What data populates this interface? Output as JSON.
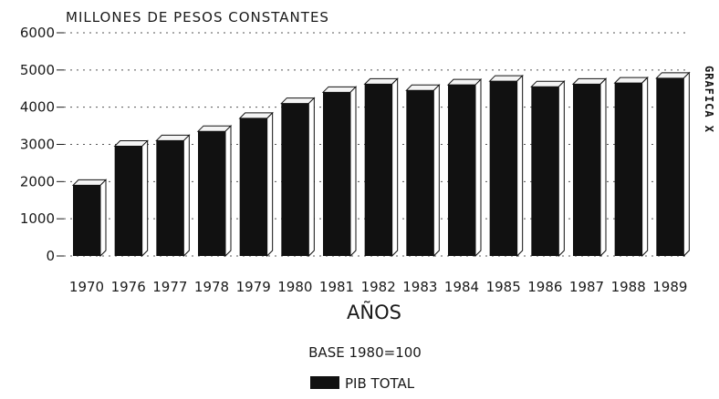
{
  "chart_data": {
    "type": "bar",
    "title": "MILLONES DE PESOS CONSTANTES",
    "side_title": "GRAFICA X",
    "xlabel": "AÑOS",
    "subtitle": "BASE 1980=100",
    "categories": [
      "1970",
      "1976",
      "1977",
      "1978",
      "1979",
      "1980",
      "1981",
      "1982",
      "1983",
      "1984",
      "1985",
      "1986",
      "1987",
      "1988",
      "1989"
    ],
    "series": [
      {
        "name": "PIB TOTAL",
        "values": [
          1900,
          2950,
          3100,
          3350,
          3700,
          4100,
          4400,
          4620,
          4450,
          4600,
          4700,
          4550,
          4620,
          4650,
          4780
        ]
      }
    ],
    "ylim": [
      0,
      6000
    ],
    "yticks": [
      0,
      1000,
      2000,
      3000,
      4000,
      5000,
      6000
    ],
    "ytick_labels": [
      "0",
      "1000",
      "2000",
      "3000",
      "4000",
      "5000",
      "6000"
    ],
    "grid": true,
    "legend_position": "bottom-center",
    "colors": {
      "bar": "#111111",
      "bar_top": "#f4f4f4",
      "text": "#1a1a1a",
      "grid": "#555555"
    }
  }
}
